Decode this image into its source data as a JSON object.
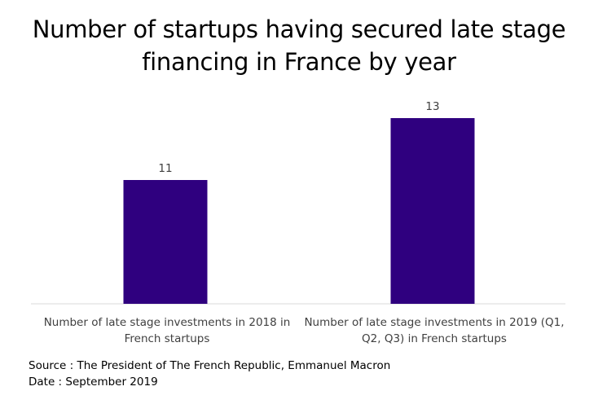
{
  "chart_data": {
    "type": "bar",
    "title_lines": [
      "Number of startups having secured late stage",
      "financing in France by year"
    ],
    "categories": [
      "Number of late stage investments in 2018 in French startups",
      "Number of late stage investments in 2019 (Q1, Q2, Q3) in French startups"
    ],
    "category_lines": [
      [
        "Number of late stage investments in 2018 in",
        "French startups"
      ],
      [
        "Number of late stage investments in 2019 (Q1,",
        "Q2, Q3) in French startups"
      ]
    ],
    "values": [
      11,
      13
    ],
    "data_labels": [
      "11",
      "13"
    ],
    "xlabel": "",
    "ylabel": "",
    "ylim": [
      7,
      13.5
    ],
    "grid": false,
    "legend": "none",
    "bar_color": "#2f007f"
  },
  "footer": {
    "source": "Source : The President of The French Republic, Emmanuel Macron",
    "date": "Date : September 2019"
  }
}
